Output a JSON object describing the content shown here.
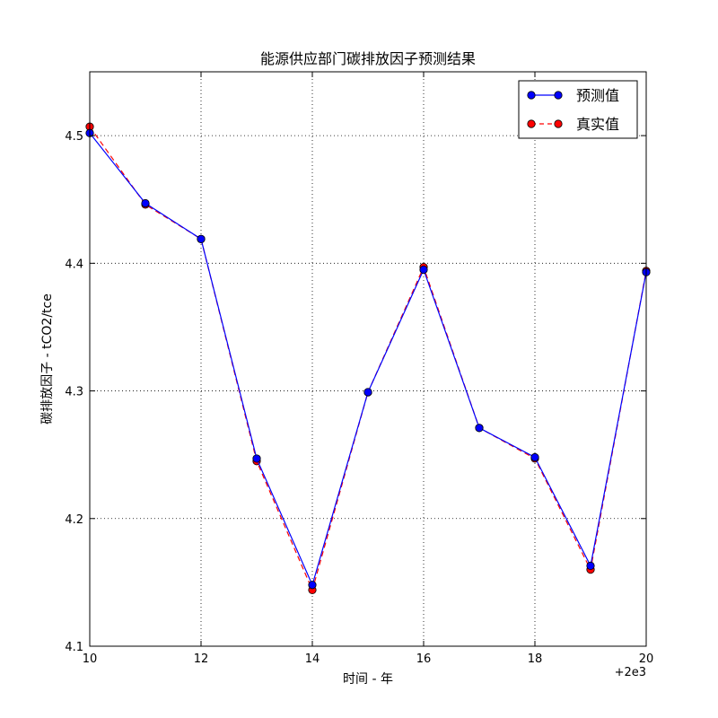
{
  "chart_data": {
    "type": "line",
    "title": "能源供应部门碳排放因子预测结果",
    "xlabel": "时间 - 年",
    "ylabel": "碳排放因子 - tCO2/tce",
    "x_offset_label": "+2e3",
    "x": [
      2010,
      2011,
      2012,
      2013,
      2014,
      2015,
      2016,
      2017,
      2018,
      2019,
      2020
    ],
    "xlim": [
      2010,
      2020
    ],
    "ylim": [
      4.1,
      4.55
    ],
    "xticks": [
      2010,
      2012,
      2014,
      2016,
      2018,
      2020
    ],
    "xtick_labels": [
      "10",
      "12",
      "14",
      "16",
      "18",
      "20"
    ],
    "yticks": [
      4.1,
      4.2,
      4.3,
      4.4,
      4.5
    ],
    "ytick_labels": [
      "4.1",
      "4.2",
      "4.3",
      "4.4",
      "4.5"
    ],
    "grid": true,
    "legend_position": "top-right",
    "series": [
      {
        "name": "预测值",
        "color": "#0000ff",
        "line_style": "solid",
        "marker": "circle",
        "values": [
          4.502,
          4.447,
          4.419,
          4.247,
          4.148,
          4.299,
          4.395,
          4.271,
          4.248,
          4.163,
          4.393
        ]
      },
      {
        "name": "真实值",
        "color": "#ff0000",
        "line_style": "dashed",
        "marker": "circle",
        "values": [
          4.507,
          4.446,
          4.419,
          4.245,
          4.144,
          4.299,
          4.397,
          4.271,
          4.247,
          4.16,
          4.394
        ]
      }
    ]
  }
}
